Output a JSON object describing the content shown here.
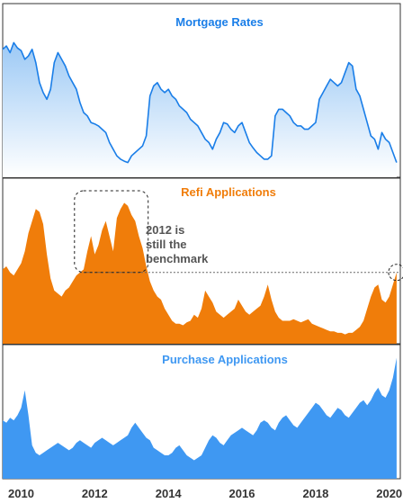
{
  "chart_data": {
    "type": "area",
    "x_ticks": [
      "2010",
      "2012",
      "2014",
      "2016",
      "2018",
      "2020"
    ],
    "x_tick_years": [
      2010,
      2012,
      2014,
      2016,
      2018,
      2020
    ],
    "xlim": [
      2009.5,
      2020.3
    ],
    "annotation": {
      "line1": "2012 is",
      "line2": "still the",
      "line3": "benchmark"
    },
    "panels": [
      {
        "title": "Mortgage Rates",
        "color": "#1a7ee8",
        "fill_top": "#9cc9f5",
        "fill_bottom": "#ffffff",
        "style": "line",
        "ylim": [
          3.3,
          5.3
        ],
        "x": [
          2009.5,
          2009.6,
          2009.7,
          2009.8,
          2009.9,
          2010.0,
          2010.1,
          2010.2,
          2010.3,
          2010.4,
          2010.5,
          2010.6,
          2010.7,
          2010.8,
          2010.9,
          2011.0,
          2011.1,
          2011.2,
          2011.3,
          2011.4,
          2011.5,
          2011.6,
          2011.7,
          2011.8,
          2011.9,
          2012.0,
          2012.1,
          2012.2,
          2012.3,
          2012.4,
          2012.5,
          2012.6,
          2012.7,
          2012.8,
          2012.9,
          2013.0,
          2013.1,
          2013.2,
          2013.3,
          2013.4,
          2013.5,
          2013.6,
          2013.7,
          2013.8,
          2013.9,
          2014.0,
          2014.1,
          2014.2,
          2014.3,
          2014.4,
          2014.5,
          2014.6,
          2014.7,
          2014.8,
          2014.9,
          2015.0,
          2015.1,
          2015.2,
          2015.3,
          2015.4,
          2015.5,
          2015.6,
          2015.7,
          2015.8,
          2015.9,
          2016.0,
          2016.1,
          2016.2,
          2016.3,
          2016.4,
          2016.5,
          2016.6,
          2016.7,
          2016.8,
          2016.9,
          2017.0,
          2017.1,
          2017.2,
          2017.3,
          2017.4,
          2017.5,
          2017.6,
          2017.7,
          2017.8,
          2017.9,
          2018.0,
          2018.1,
          2018.2,
          2018.3,
          2018.4,
          2018.5,
          2018.6,
          2018.7,
          2018.8,
          2018.9,
          2019.0,
          2019.1,
          2019.2,
          2019.3,
          2019.4,
          2019.5,
          2019.6,
          2019.7,
          2019.8,
          2019.9,
          2020.0,
          2020.1,
          2020.2
        ],
        "values": [
          5.1,
          5.15,
          5.05,
          5.2,
          5.12,
          5.08,
          4.95,
          5.0,
          5.1,
          4.9,
          4.6,
          4.45,
          4.35,
          4.5,
          4.9,
          5.05,
          4.95,
          4.85,
          4.7,
          4.6,
          4.5,
          4.3,
          4.15,
          4.1,
          4.0,
          3.98,
          3.95,
          3.9,
          3.85,
          3.7,
          3.6,
          3.5,
          3.45,
          3.42,
          3.4,
          3.5,
          3.55,
          3.6,
          3.65,
          3.8,
          4.4,
          4.55,
          4.6,
          4.5,
          4.45,
          4.5,
          4.4,
          4.35,
          4.25,
          4.2,
          4.15,
          4.05,
          4.0,
          3.95,
          3.85,
          3.75,
          3.7,
          3.6,
          3.75,
          3.85,
          4.0,
          3.98,
          3.9,
          3.85,
          3.95,
          4.0,
          3.85,
          3.7,
          3.62,
          3.55,
          3.5,
          3.45,
          3.45,
          3.5,
          4.1,
          4.2,
          4.2,
          4.15,
          4.1,
          4.0,
          3.95,
          3.95,
          3.9,
          3.9,
          3.95,
          4.0,
          4.35,
          4.45,
          4.55,
          4.65,
          4.6,
          4.55,
          4.6,
          4.75,
          4.9,
          4.85,
          4.5,
          4.4,
          4.2,
          4.0,
          3.8,
          3.75,
          3.6,
          3.85,
          3.75,
          3.7,
          3.55,
          3.4
        ]
      },
      {
        "title": "Refi Applications",
        "color": "#f07d0a",
        "fill_top": "#f07d0a",
        "fill_bottom": "#f07d0a",
        "style": "area",
        "ylim": [
          0,
          100
        ],
        "x": [
          2009.5,
          2009.6,
          2009.7,
          2009.8,
          2009.9,
          2010.0,
          2010.1,
          2010.2,
          2010.3,
          2010.4,
          2010.5,
          2010.6,
          2010.7,
          2010.8,
          2010.9,
          2011.0,
          2011.1,
          2011.2,
          2011.3,
          2011.4,
          2011.5,
          2011.6,
          2011.7,
          2011.8,
          2011.9,
          2012.0,
          2012.1,
          2012.2,
          2012.3,
          2012.4,
          2012.5,
          2012.6,
          2012.7,
          2012.8,
          2012.9,
          2013.0,
          2013.1,
          2013.2,
          2013.3,
          2013.4,
          2013.5,
          2013.6,
          2013.7,
          2013.8,
          2013.9,
          2014.0,
          2014.1,
          2014.2,
          2014.3,
          2014.4,
          2014.5,
          2014.6,
          2014.7,
          2014.8,
          2014.9,
          2015.0,
          2015.1,
          2015.2,
          2015.3,
          2015.4,
          2015.5,
          2015.6,
          2015.7,
          2015.8,
          2015.9,
          2016.0,
          2016.1,
          2016.2,
          2016.3,
          2016.4,
          2016.5,
          2016.6,
          2016.7,
          2016.8,
          2016.9,
          2017.0,
          2017.1,
          2017.2,
          2017.3,
          2017.4,
          2017.5,
          2017.6,
          2017.7,
          2017.8,
          2017.9,
          2018.0,
          2018.1,
          2018.2,
          2018.3,
          2018.4,
          2018.5,
          2018.6,
          2018.7,
          2018.8,
          2018.9,
          2019.0,
          2019.1,
          2019.2,
          2019.3,
          2019.4,
          2019.5,
          2019.6,
          2019.7,
          2019.8,
          2019.9,
          2020.0,
          2020.1,
          2020.2
        ],
        "values": [
          48,
          50,
          46,
          44,
          48,
          52,
          60,
          72,
          80,
          88,
          86,
          78,
          58,
          42,
          34,
          32,
          30,
          34,
          36,
          40,
          44,
          46,
          48,
          60,
          70,
          58,
          64,
          74,
          80,
          70,
          60,
          82,
          88,
          92,
          90,
          84,
          80,
          70,
          62,
          50,
          40,
          34,
          30,
          28,
          22,
          18,
          14,
          12,
          12,
          11,
          13,
          14,
          18,
          16,
          22,
          34,
          30,
          26,
          20,
          18,
          16,
          18,
          20,
          22,
          28,
          24,
          20,
          18,
          20,
          22,
          24,
          30,
          38,
          28,
          20,
          16,
          14,
          14,
          14,
          15,
          14,
          13,
          14,
          15,
          12,
          11,
          10,
          9,
          8,
          7,
          7,
          6,
          6,
          5,
          6,
          6,
          8,
          10,
          14,
          22,
          30,
          36,
          38,
          28,
          26,
          30,
          38,
          46
        ]
      },
      {
        "title": "Purchase Applications",
        "color": "#3f98f2",
        "fill_top": "#3f98f2",
        "fill_bottom": "#3f98f2",
        "style": "area",
        "ylim": [
          0,
          100
        ],
        "x": [
          2009.5,
          2009.6,
          2009.7,
          2009.8,
          2009.9,
          2010.0,
          2010.1,
          2010.2,
          2010.3,
          2010.4,
          2010.5,
          2010.6,
          2010.7,
          2010.8,
          2010.9,
          2011.0,
          2011.1,
          2011.2,
          2011.3,
          2011.4,
          2011.5,
          2011.6,
          2011.7,
          2011.8,
          2011.9,
          2012.0,
          2012.1,
          2012.2,
          2012.3,
          2012.4,
          2012.5,
          2012.6,
          2012.7,
          2012.8,
          2012.9,
          2013.0,
          2013.1,
          2013.2,
          2013.3,
          2013.4,
          2013.5,
          2013.6,
          2013.7,
          2013.8,
          2013.9,
          2014.0,
          2014.1,
          2014.2,
          2014.3,
          2014.4,
          2014.5,
          2014.6,
          2014.7,
          2014.8,
          2014.9,
          2015.0,
          2015.1,
          2015.2,
          2015.3,
          2015.4,
          2015.5,
          2015.6,
          2015.7,
          2015.8,
          2015.9,
          2016.0,
          2016.1,
          2016.2,
          2016.3,
          2016.4,
          2016.5,
          2016.6,
          2016.7,
          2016.8,
          2016.9,
          2017.0,
          2017.1,
          2017.2,
          2017.3,
          2017.4,
          2017.5,
          2017.6,
          2017.7,
          2017.8,
          2017.9,
          2018.0,
          2018.1,
          2018.2,
          2018.3,
          2018.4,
          2018.5,
          2018.6,
          2018.7,
          2018.8,
          2018.9,
          2019.0,
          2019.1,
          2019.2,
          2019.3,
          2019.4,
          2019.5,
          2019.6,
          2019.7,
          2019.8,
          2019.9,
          2020.0,
          2020.1,
          2020.2
        ],
        "values": [
          46,
          44,
          48,
          46,
          50,
          56,
          70,
          50,
          26,
          20,
          18,
          20,
          22,
          24,
          26,
          28,
          26,
          24,
          22,
          24,
          28,
          30,
          28,
          26,
          24,
          28,
          30,
          32,
          30,
          28,
          26,
          28,
          30,
          32,
          34,
          40,
          44,
          40,
          36,
          32,
          30,
          24,
          22,
          20,
          18,
          18,
          20,
          24,
          26,
          22,
          18,
          16,
          14,
          16,
          18,
          24,
          30,
          34,
          32,
          28,
          26,
          30,
          34,
          36,
          38,
          40,
          38,
          36,
          34,
          38,
          44,
          46,
          44,
          40,
          38,
          44,
          48,
          50,
          46,
          42,
          40,
          44,
          48,
          52,
          56,
          60,
          58,
          54,
          50,
          48,
          52,
          56,
          54,
          50,
          48,
          52,
          56,
          60,
          62,
          58,
          62,
          68,
          72,
          66,
          64,
          70,
          80,
          96
        ]
      }
    ]
  }
}
